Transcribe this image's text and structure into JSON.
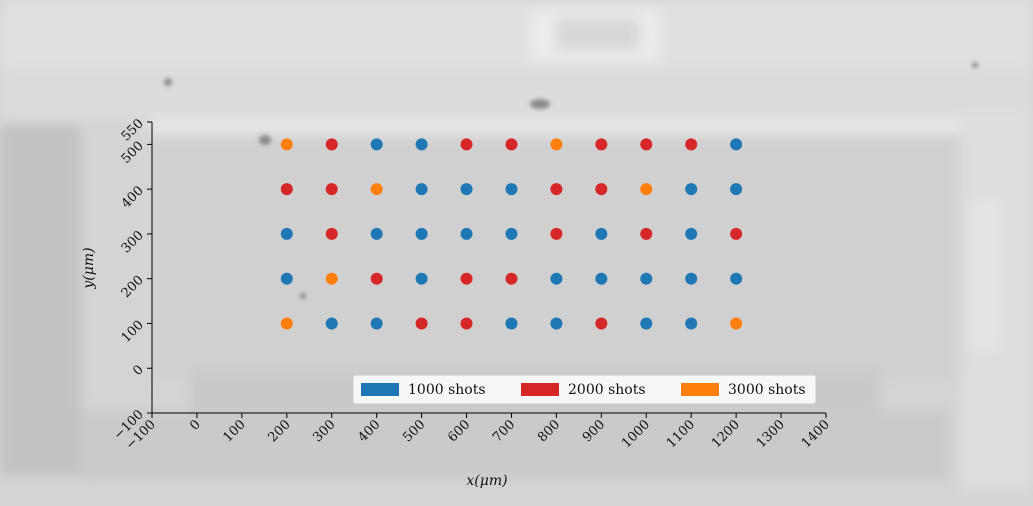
{
  "chart_data": {
    "type": "scatter",
    "xlabel": "x(μm)",
    "ylabel": "y(μm)",
    "xlim": [
      -100,
      1400
    ],
    "ylim": [
      -100,
      550
    ],
    "x_ticks": [
      -100,
      0,
      100,
      200,
      300,
      400,
      500,
      600,
      700,
      800,
      900,
      1000,
      1100,
      1200,
      1300,
      1400
    ],
    "y_ticks": [
      -100,
      0,
      100,
      200,
      300,
      400,
      500,
      550
    ],
    "legend_position": "lower-right",
    "grid": false,
    "background": "grayscale microscope image",
    "series": [
      {
        "name": "1000 shots",
        "color": "#1f77b4",
        "points": [
          [
            400,
            500
          ],
          [
            500,
            500
          ],
          [
            1200,
            500
          ],
          [
            500,
            400
          ],
          [
            600,
            400
          ],
          [
            700,
            400
          ],
          [
            1100,
            400
          ],
          [
            1200,
            400
          ],
          [
            200,
            300
          ],
          [
            400,
            300
          ],
          [
            500,
            300
          ],
          [
            600,
            300
          ],
          [
            700,
            300
          ],
          [
            900,
            300
          ],
          [
            1100,
            300
          ],
          [
            200,
            200
          ],
          [
            500,
            200
          ],
          [
            800,
            200
          ],
          [
            900,
            200
          ],
          [
            1000,
            200
          ],
          [
            1100,
            200
          ],
          [
            1200,
            200
          ],
          [
            300,
            100
          ],
          [
            400,
            100
          ],
          [
            700,
            100
          ],
          [
            800,
            100
          ],
          [
            1000,
            100
          ],
          [
            1100,
            100
          ]
        ]
      },
      {
        "name": "2000 shots",
        "color": "#d62728",
        "points": [
          [
            300,
            500
          ],
          [
            600,
            500
          ],
          [
            700,
            500
          ],
          [
            900,
            500
          ],
          [
            1000,
            500
          ],
          [
            1100,
            500
          ],
          [
            200,
            400
          ],
          [
            300,
            400
          ],
          [
            800,
            400
          ],
          [
            900,
            400
          ],
          [
            300,
            300
          ],
          [
            800,
            300
          ],
          [
            1000,
            300
          ],
          [
            1200,
            300
          ],
          [
            400,
            200
          ],
          [
            600,
            200
          ],
          [
            700,
            200
          ],
          [
            500,
            100
          ],
          [
            600,
            100
          ],
          [
            900,
            100
          ]
        ]
      },
      {
        "name": "3000 shots",
        "color": "#ff7f0e",
        "points": [
          [
            200,
            500
          ],
          [
            800,
            500
          ],
          [
            400,
            400
          ],
          [
            1000,
            400
          ],
          [
            300,
            200
          ],
          [
            200,
            100
          ],
          [
            1200,
            100
          ]
        ]
      }
    ]
  }
}
